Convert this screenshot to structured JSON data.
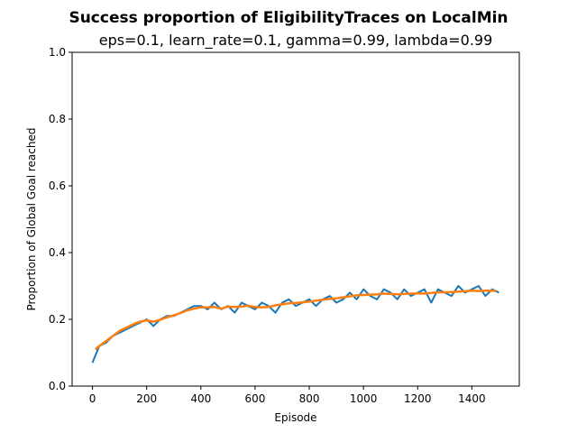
{
  "chart_data": {
    "type": "line",
    "title": "Success proportion of EligibilityTraces on LocalMin",
    "subtitle": "eps=0.1, learn_rate=0.1, gamma=0.99, lambda=0.99",
    "xlabel": "Episode",
    "ylabel": "Proportion of Global Goal reached",
    "xlim": [
      -75,
      1575
    ],
    "ylim": [
      0.0,
      1.0
    ],
    "xticks": [
      0,
      200,
      400,
      600,
      800,
      1000,
      1200,
      1400
    ],
    "yticks": [
      0.0,
      0.2,
      0.4,
      0.6,
      0.8,
      1.0
    ],
    "xtick_labels": [
      "0",
      "200",
      "400",
      "600",
      "800",
      "1000",
      "1200",
      "1400"
    ],
    "ytick_labels": [
      "0.0",
      "0.2",
      "0.4",
      "0.6",
      "0.8",
      "1.0"
    ],
    "grid": false,
    "colors": {
      "raw": "#1f77b4",
      "smoothed": "#ff7f0e"
    },
    "series": [
      {
        "x": [
          0,
          25,
          50,
          75,
          100,
          125,
          150,
          175,
          200,
          225,
          250,
          275,
          300,
          325,
          350,
          375,
          400,
          425,
          450,
          475,
          500,
          525,
          550,
          575,
          600,
          625,
          650,
          675,
          700,
          725,
          750,
          775,
          800,
          825,
          850,
          875,
          900,
          925,
          950,
          975,
          1000,
          1025,
          1050,
          1075,
          1100,
          1125,
          1150,
          1175,
          1200,
          1225,
          1250,
          1275,
          1300,
          1325,
          1350,
          1375,
          1400,
          1425,
          1450,
          1475,
          1500
        ],
        "values": [
          0.07,
          0.12,
          0.13,
          0.15,
          0.16,
          0.17,
          0.18,
          0.19,
          0.2,
          0.18,
          0.2,
          0.21,
          0.21,
          0.22,
          0.23,
          0.24,
          0.24,
          0.23,
          0.25,
          0.23,
          0.24,
          0.22,
          0.25,
          0.24,
          0.23,
          0.25,
          0.24,
          0.22,
          0.25,
          0.26,
          0.24,
          0.25,
          0.26,
          0.24,
          0.26,
          0.27,
          0.25,
          0.26,
          0.28,
          0.26,
          0.29,
          0.27,
          0.26,
          0.29,
          0.28,
          0.26,
          0.29,
          0.27,
          0.28,
          0.29,
          0.25,
          0.29,
          0.28,
          0.27,
          0.3,
          0.28,
          0.29,
          0.3,
          0.27,
          0.29,
          0.28
        ]
      },
      {
        "x": [
          10,
          25,
          50,
          75,
          100,
          125,
          150,
          175,
          200,
          225,
          250,
          275,
          300,
          325,
          350,
          375,
          400,
          425,
          450,
          475,
          500,
          525,
          550,
          575,
          600,
          625,
          650,
          675,
          700,
          725,
          750,
          775,
          800,
          825,
          850,
          875,
          900,
          925,
          950,
          975,
          1000,
          1025,
          1050,
          1075,
          1100,
          1125,
          1150,
          1175,
          1200,
          1225,
          1250,
          1275,
          1300,
          1325,
          1350,
          1375,
          1400,
          1425,
          1450,
          1475,
          1490
        ],
        "values": [
          0.11,
          0.12,
          0.135,
          0.15,
          0.165,
          0.175,
          0.185,
          0.193,
          0.197,
          0.193,
          0.199,
          0.206,
          0.212,
          0.219,
          0.227,
          0.232,
          0.236,
          0.236,
          0.237,
          0.232,
          0.238,
          0.237,
          0.238,
          0.241,
          0.237,
          0.236,
          0.237,
          0.242,
          0.245,
          0.248,
          0.249,
          0.251,
          0.253,
          0.256,
          0.259,
          0.261,
          0.263,
          0.266,
          0.269,
          0.272,
          0.273,
          0.274,
          0.275,
          0.277,
          0.276,
          0.275,
          0.276,
          0.277,
          0.278,
          0.277,
          0.279,
          0.281,
          0.281,
          0.282,
          0.283,
          0.284,
          0.286,
          0.285,
          0.286,
          0.286,
          0.285
        ]
      }
    ]
  }
}
